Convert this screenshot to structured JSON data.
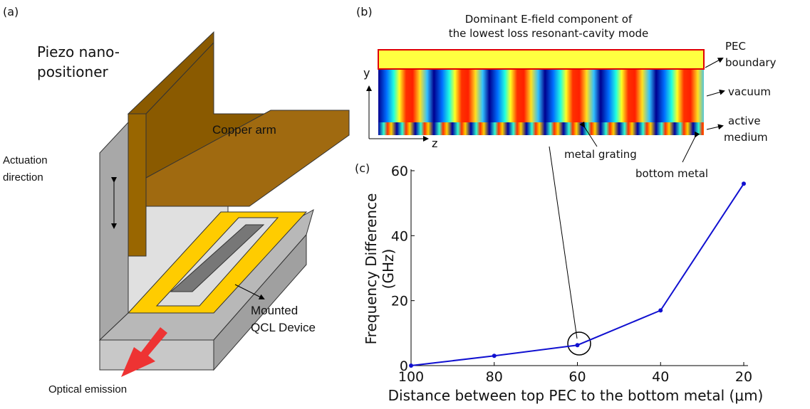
{
  "panel_a": {
    "label": "(a)",
    "positioner": [
      "Piezo nano-",
      "positioner"
    ],
    "arm": "Copper arm",
    "actuation": [
      "Actuation",
      "direction"
    ],
    "device": [
      "Mounted",
      "QCL Device"
    ],
    "emission": "Optical emission"
  },
  "panel_b": {
    "label": "(b)",
    "title": [
      "Dominant E-field component of",
      "the lowest loss resonant-cavity mode"
    ],
    "y_axis": "y",
    "z_axis": "z",
    "pec": [
      "PEC",
      "boundary"
    ],
    "vacuum": "vacuum",
    "active": [
      "active",
      "medium"
    ],
    "grating": "metal grating",
    "bottom": "bottom metal"
  },
  "chart_data": {
    "type": "line",
    "label": "(c)",
    "xlabel": "Distance between top PEC to the bottom metal (μm)",
    "ylabel": [
      "Frequency Difference",
      "(GHz)"
    ],
    "x": [
      100,
      80,
      60,
      40,
      20
    ],
    "series": [
      {
        "color": "#1010d0",
        "values": [
          0,
          3,
          6.3,
          17,
          56
        ]
      }
    ],
    "xlim": [
      100,
      20
    ],
    "xticks": [
      100,
      80,
      60,
      40,
      20
    ],
    "ylim": [
      0,
      60
    ],
    "yticks": [
      0,
      20,
      40,
      60
    ]
  }
}
